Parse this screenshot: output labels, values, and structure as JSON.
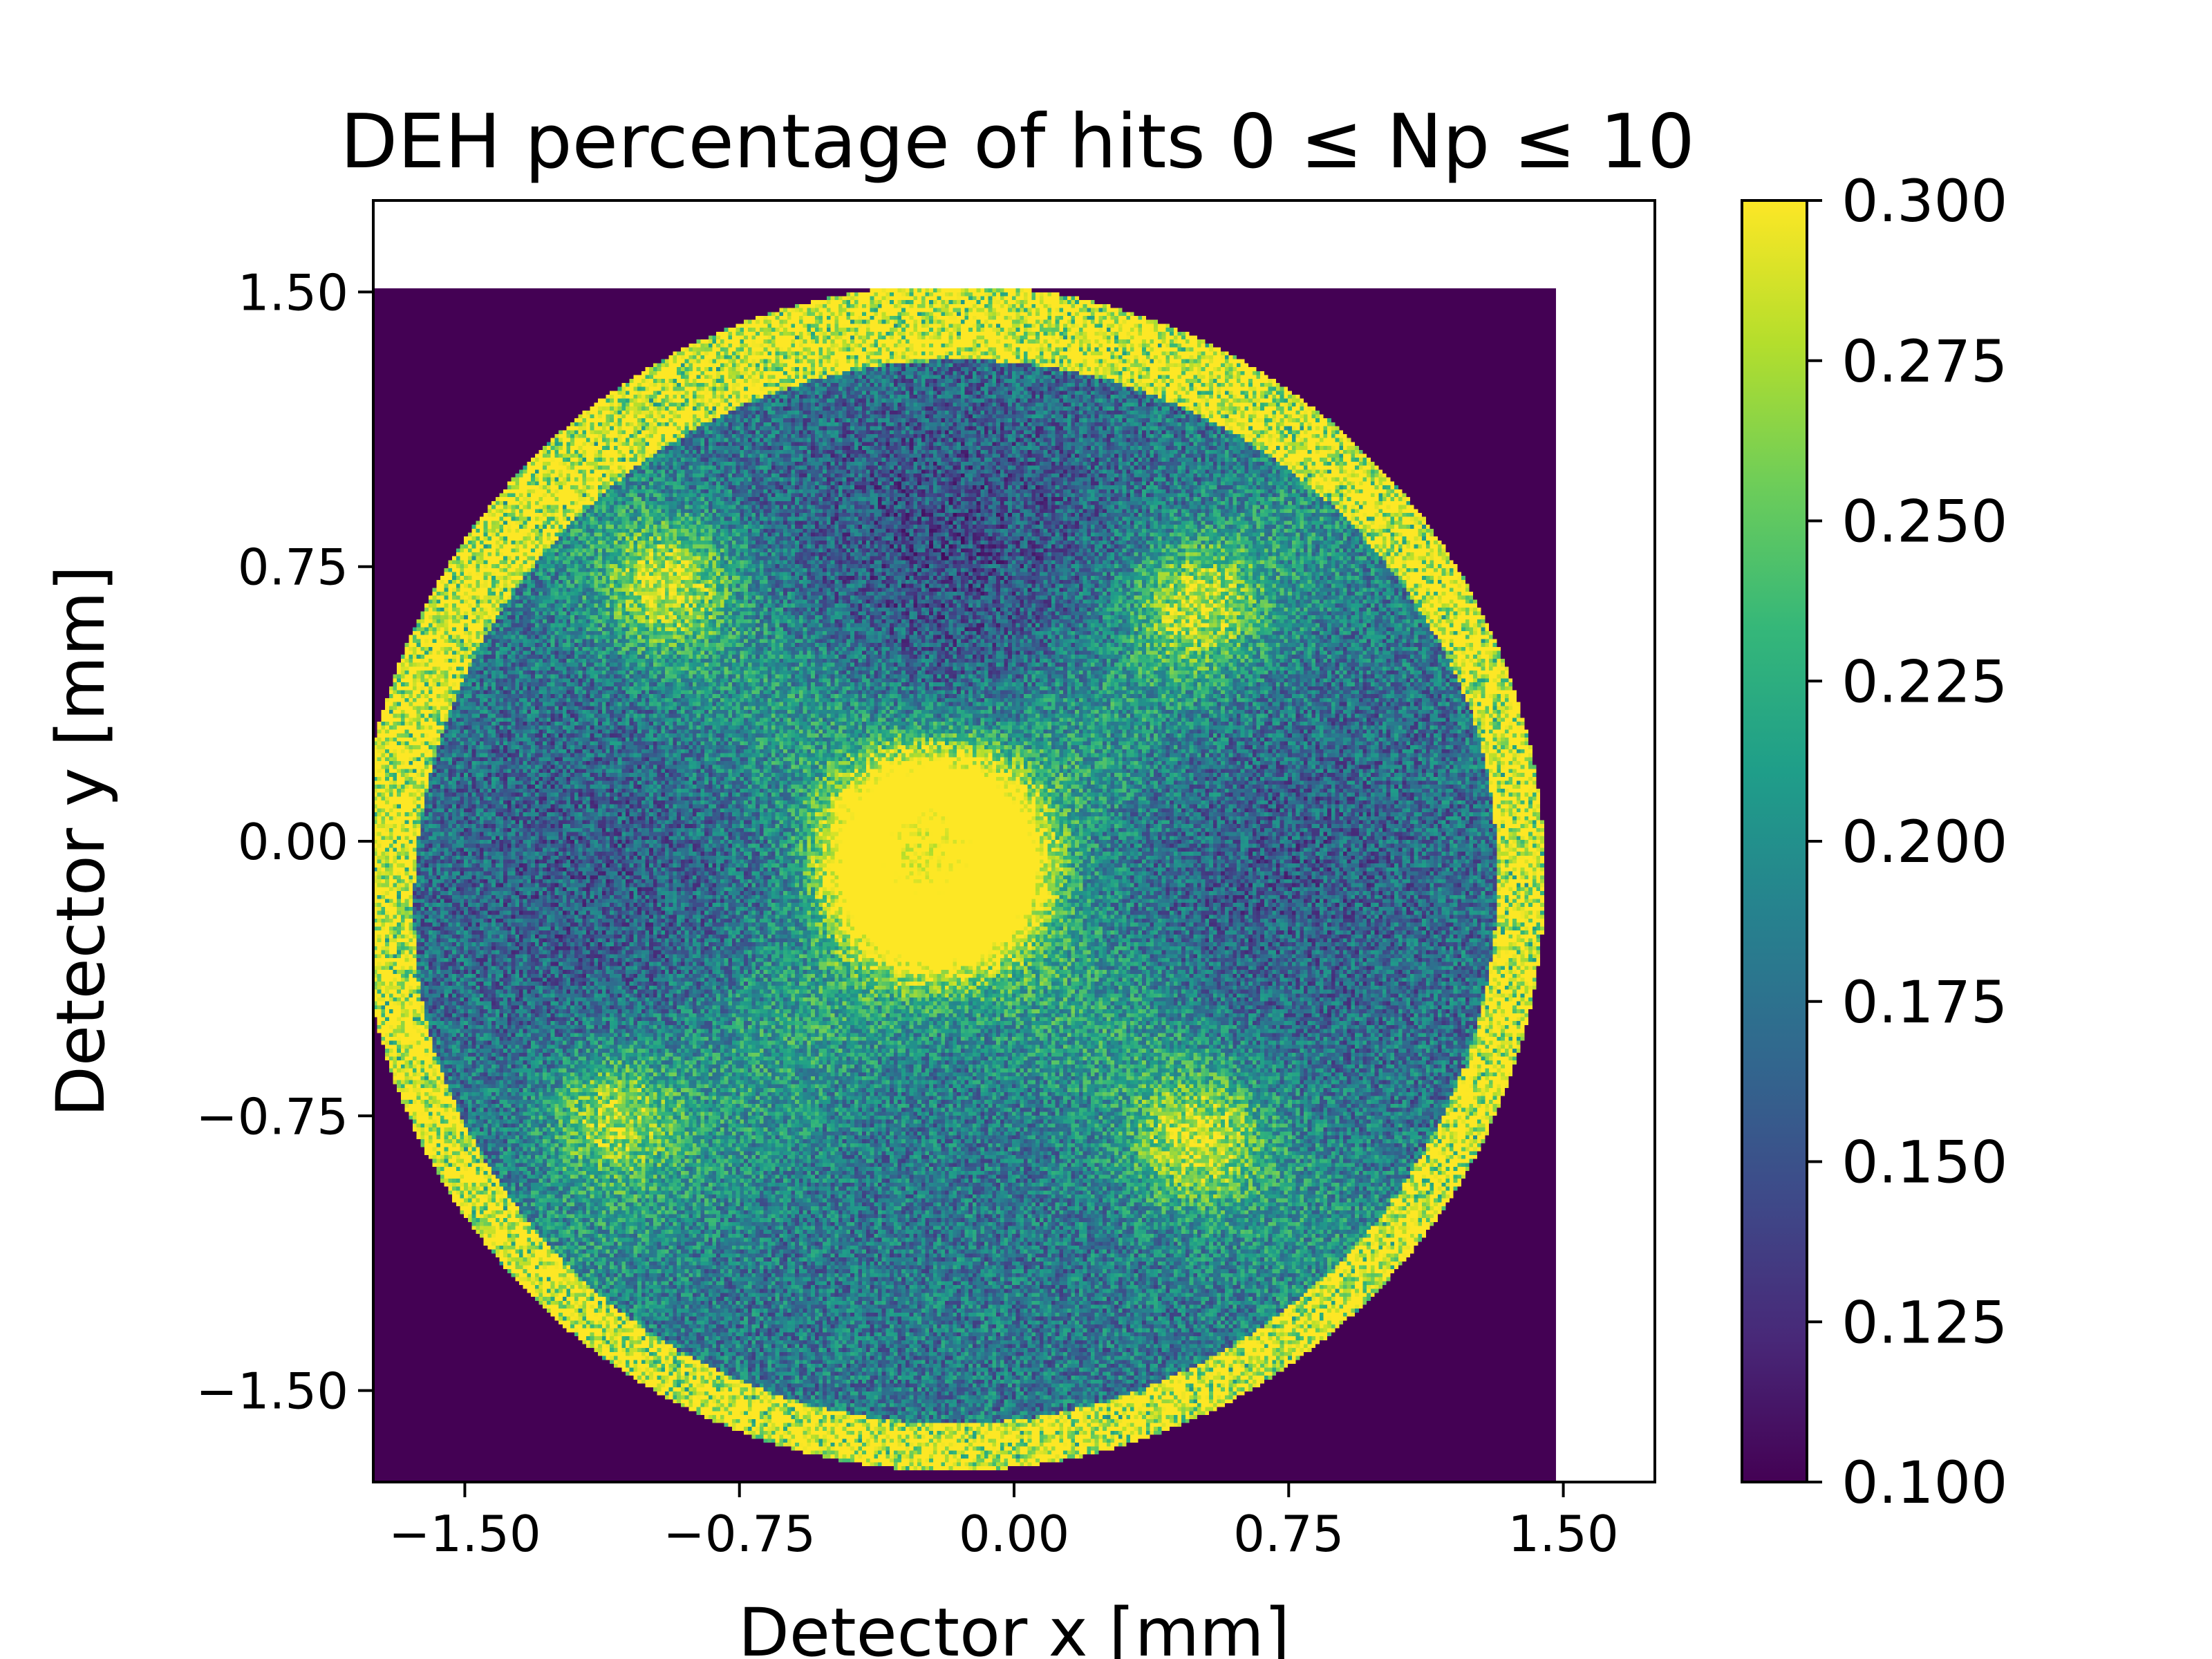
{
  "chart_data": {
    "type": "heatmap",
    "title": "DEH percentage of hits 0 ≤ Np ≤ 10",
    "xlabel": "Detector x [mm]",
    "ylabel": "Detector y [mm]",
    "xlim": [
      -1.75,
      1.75
    ],
    "ylim": [
      -1.75,
      1.75
    ],
    "data_extent": {
      "x": [
        -1.75,
        1.48
      ],
      "y": [
        -1.75,
        1.51
      ]
    },
    "xticks": [
      -1.5,
      -0.75,
      0.0,
      0.75,
      1.5
    ],
    "xtick_labels": [
      "−1.50",
      "−0.75",
      "0.00",
      "0.75",
      "1.50"
    ],
    "yticks": [
      -1.5,
      -0.75,
      0.0,
      0.75,
      1.5
    ],
    "ytick_labels": [
      "−1.50",
      "−0.75",
      "0.00",
      "0.75",
      "1.50"
    ],
    "colormap": "viridis",
    "colorbar": {
      "range": [
        0.1,
        0.3
      ],
      "ticks": [
        0.1,
        0.125,
        0.15,
        0.175,
        0.2,
        0.225,
        0.25,
        0.275,
        0.3
      ],
      "tick_labels": [
        "0.100",
        "0.125",
        "0.150",
        "0.175",
        "0.200",
        "0.225",
        "0.250",
        "0.275",
        "0.300"
      ]
    },
    "features": {
      "detector_center": [
        -0.17,
        -0.1
      ],
      "detector_radius": 1.62,
      "hot_spots": [
        {
          "x": -0.22,
          "y": -0.05,
          "value": 0.3
        },
        {
          "x": -0.95,
          "y": 0.7,
          "value": 0.28
        },
        {
          "x": 0.5,
          "y": 0.65,
          "value": 0.28
        },
        {
          "x": -1.1,
          "y": -0.75,
          "value": 0.28
        },
        {
          "x": 0.5,
          "y": -0.82,
          "value": 0.28
        }
      ],
      "background_value": 0.1,
      "disk_base_value": 0.18,
      "rim_value": 0.3
    }
  }
}
